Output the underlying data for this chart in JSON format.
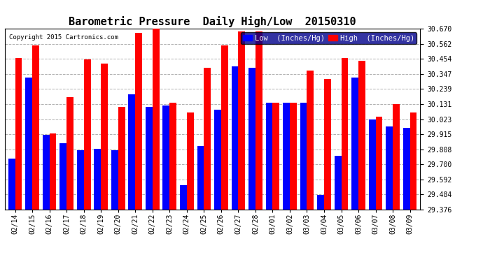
{
  "title": "Barometric Pressure  Daily High/Low  20150310",
  "copyright": "Copyright 2015 Cartronics.com",
  "legend_low": "Low  (Inches/Hg)",
  "legend_high": "High  (Inches/Hg)",
  "dates": [
    "02/14",
    "02/15",
    "02/16",
    "02/17",
    "02/18",
    "02/19",
    "02/20",
    "02/21",
    "02/22",
    "02/23",
    "02/24",
    "02/25",
    "02/26",
    "02/27",
    "02/28",
    "03/01",
    "03/02",
    "03/03",
    "03/04",
    "03/05",
    "03/06",
    "03/07",
    "03/08",
    "03/09"
  ],
  "low_values": [
    29.74,
    30.32,
    29.91,
    29.85,
    29.8,
    29.81,
    29.8,
    30.2,
    30.11,
    30.12,
    29.55,
    29.83,
    30.09,
    30.4,
    30.39,
    30.14,
    30.14,
    30.14,
    29.48,
    29.76,
    30.32,
    30.02,
    29.97,
    29.96
  ],
  "high_values": [
    30.46,
    30.55,
    29.92,
    30.18,
    30.45,
    30.42,
    30.11,
    30.64,
    30.67,
    30.14,
    30.07,
    30.39,
    30.55,
    30.65,
    30.65,
    30.14,
    30.14,
    30.37,
    30.31,
    30.46,
    30.44,
    30.04,
    30.13,
    30.07
  ],
  "ylim_min": 29.376,
  "ylim_max": 30.67,
  "yticks": [
    29.376,
    29.484,
    29.592,
    29.7,
    29.808,
    29.915,
    30.023,
    30.131,
    30.239,
    30.347,
    30.454,
    30.562,
    30.67
  ],
  "low_color": "#0000ff",
  "high_color": "#ff0000",
  "bg_color": "#ffffff",
  "grid_color": "#b0b0b0",
  "bar_width": 0.4,
  "title_fontsize": 11,
  "tick_fontsize": 7,
  "legend_fontsize": 7.5
}
